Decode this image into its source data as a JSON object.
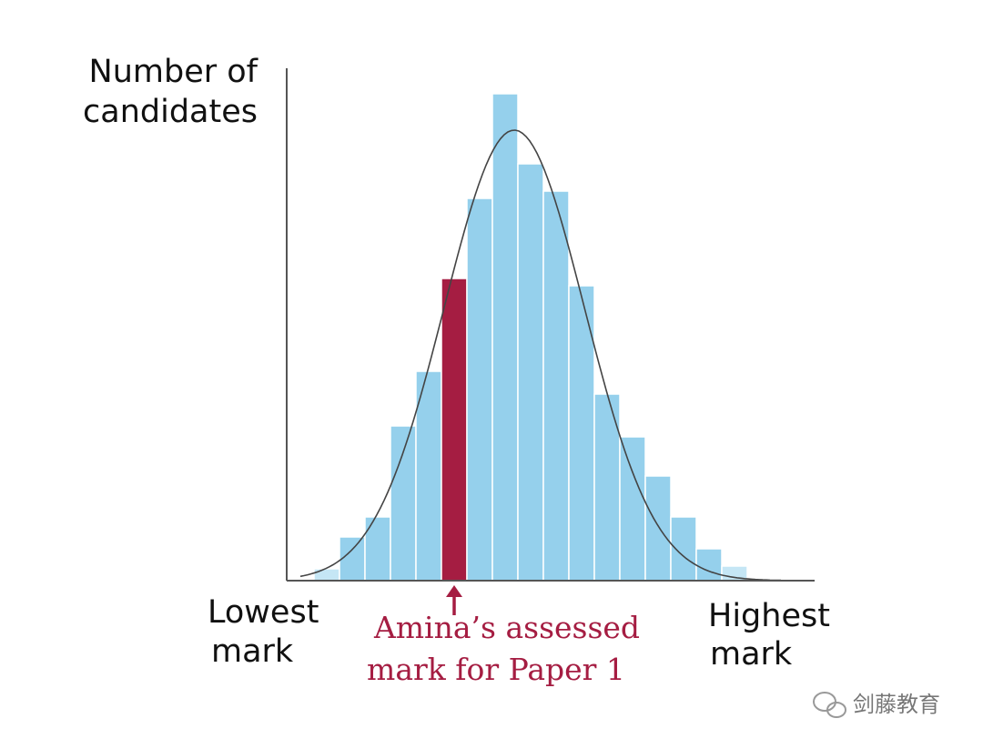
{
  "chart_data": {
    "type": "histogram",
    "y_label": [
      "Number of",
      "candidates"
    ],
    "x_label_low": [
      "Lowest",
      "mark"
    ],
    "x_label_high": [
      "Highest",
      "mark"
    ],
    "annotation": [
      "Amina’s assessed",
      "mark for Paper 1"
    ],
    "values": [
      13,
      48,
      70,
      170,
      230,
      332,
      420,
      535,
      458,
      428,
      324,
      205,
      158,
      115,
      70,
      35,
      16
    ],
    "colors": [
      "#c5e6f5",
      "#95d0ec",
      "#95d0ec",
      "#95d0ec",
      "#95d0ec",
      "#a51d42",
      "#95d0ec",
      "#95d0ec",
      "#95d0ec",
      "#95d0ec",
      "#95d0ec",
      "#95d0ec",
      "#95d0ec",
      "#95d0ec",
      "#95d0ec",
      "#95d0ec",
      "#c5e6f5"
    ],
    "ylim": [
      0,
      563
    ]
  },
  "watermark": "剑藤教育"
}
